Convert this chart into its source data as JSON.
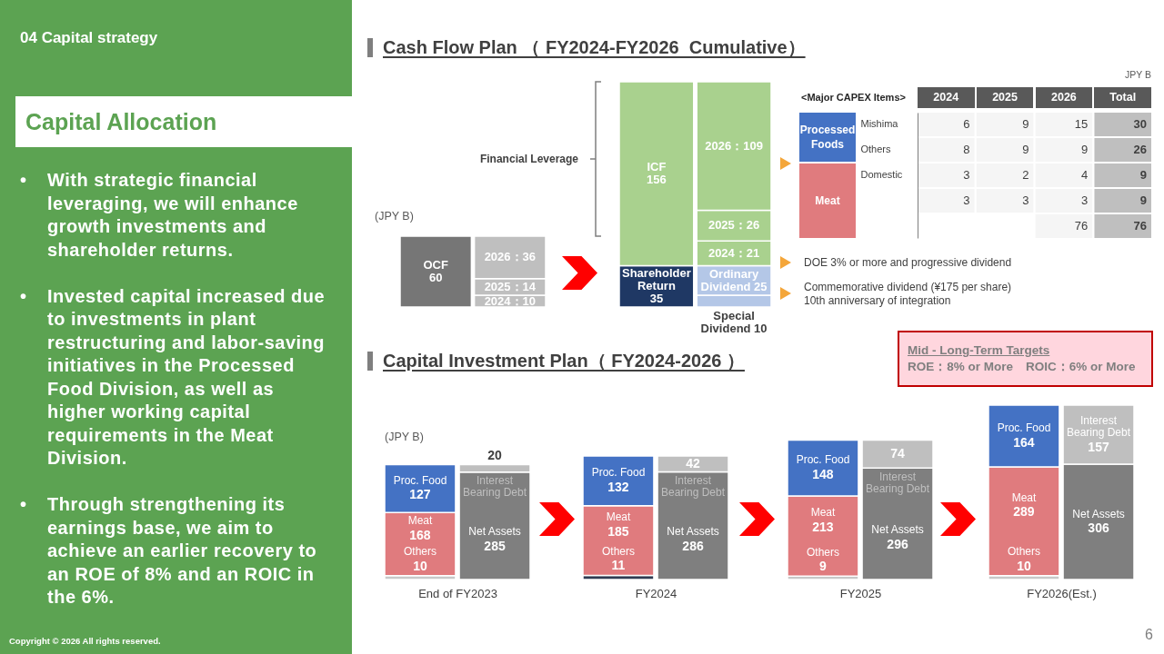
{
  "chart_data": [
    {
      "type": "other",
      "title": "04 Capital strategy",
      "subtitle": "Capital Allocation",
      "annotations": [
        "• With strategic financial leveraging, we will enhance growth investments and shareholder returns.",
        "• Invested capital increased due to investments in plant restructuring and labor-saving initiatives in the Processed Food Division, as well as higher working capital requirements in the Meat Division.",
        "• Through strengthening its earnings base, we aim to achieve an earlier recovery to an ROE of 8% and an ROIC in the 6%.",
        "Copyright © 2026 All rights reserved.",
        "6"
      ]
    },
    {
      "type": "bar",
      "title": "Cash Flow Plan （ FY2024-FY2026  Cumulative）",
      "ylabel": "(JPY B)",
      "stacked": true,
      "categories": [
        null,
        null
      ],
      "series": [
        {
          "color": "#767676",
          "values": [
            60,
            null
          ],
          "value_labels": [
            "OCF\n60",
            null
          ]
        },
        {
          "color": "#bfbfbf",
          "values": [
            null,
            10
          ],
          "value_labels": [
            null,
            "2024：10"
          ]
        },
        {
          "color": "#bfbfbf",
          "values": [
            null,
            14
          ],
          "value_labels": [
            null,
            "2025：14"
          ]
        },
        {
          "color": "#bfbfbf",
          "values": [
            null,
            36
          ],
          "value_labels": [
            null,
            "2026：36"
          ]
        }
      ]
    },
    {
      "type": "bar",
      "stacked": true,
      "categories": [
        null,
        null
      ],
      "series": [
        {
          "color": "#1f3864",
          "values": [
            35,
            null
          ],
          "value_labels": [
            "Shareholder\nReturn\n35",
            null
          ]
        },
        {
          "color": "#a9d18e",
          "values": [
            156,
            null
          ],
          "value_labels": [
            "ICF\n156",
            null
          ]
        },
        {
          "color": "#b4c7e7",
          "values": [
            null,
            10
          ],
          "value_labels": [
            null,
            "Special\nDividend 10"
          ]
        },
        {
          "color": "#b4c7e7",
          "values": [
            null,
            25
          ],
          "value_labels": [
            null,
            "Ordinary\nDividend 25"
          ]
        },
        {
          "color": "#a9d18e",
          "values": [
            null,
            21
          ],
          "value_labels": [
            null,
            "2024：21"
          ]
        },
        {
          "color": "#a9d18e",
          "values": [
            null,
            26
          ],
          "value_labels": [
            null,
            "2025：26"
          ]
        },
        {
          "color": "#a9d18e",
          "values": [
            null,
            109
          ],
          "value_labels": [
            null,
            "2026：109"
          ]
        }
      ],
      "annotations": [
        "Financial Leverage",
        "DOE 3% or more and progressive dividend",
        "Commemorative dividend (¥175 per share)\n10th anniversary of integration"
      ]
    },
    {
      "type": "heatmap",
      "ylabel": "<Major CAPEX Items>",
      "categories": [
        "2024",
        "2025",
        "2026",
        "Total"
      ],
      "y_categories": [
        "Mishima",
        "Others",
        "Domestic",
        null,
        null
      ],
      "y2_categories": [
        "Processed Foods",
        null,
        null,
        "Meat",
        null
      ],
      "colors": [
        "#4472c4",
        null,
        "#e07b7e",
        null,
        null
      ],
      "cells": [
        [
          6,
          9,
          15,
          30
        ],
        [
          8,
          9,
          9,
          26
        ],
        [
          3,
          2,
          4,
          9
        ],
        [
          3,
          3,
          3,
          9
        ],
        [
          null,
          null,
          76,
          76
        ]
      ],
      "data_labels": true,
      "annotations": [
        "JPY B"
      ]
    },
    {
      "type": "bar",
      "title": "Capital Investment Plan（ FY2024-2026 ）",
      "ylabel": "(JPY B)",
      "xlabel": "End of FY2023",
      "stacked": true,
      "data_labels": true,
      "categories": [
        null,
        null
      ],
      "series": [
        {
          "name": "Others",
          "color": "#c8c8c8",
          "values": [
            10,
            null
          ]
        },
        {
          "name": "Meat",
          "color": "#e07b7e",
          "values": [
            168,
            null
          ]
        },
        {
          "name": "Proc. Food",
          "color": "#4472c4",
          "values": [
            127,
            null
          ]
        },
        {
          "name": "Net Assets",
          "color": "#7f7f7f",
          "values": [
            null,
            285
          ]
        },
        {
          "name": "Interest Bearing Debt",
          "color": "#bfbfbf",
          "values": [
            null,
            20
          ]
        }
      ],
      "annotations": [
        "Mid - Long-Term Targets",
        "ROE：8% or More　ROIC：6% or More"
      ]
    },
    {
      "type": "bar",
      "xlabel": "FY2024",
      "stacked": true,
      "data_labels": true,
      "categories": [
        null,
        null
      ],
      "series": [
        {
          "name": "Others",
          "color": "#2f3b52",
          "values": [
            11,
            null
          ]
        },
        {
          "name": "Meat",
          "color": "#e07b7e",
          "values": [
            185,
            null
          ]
        },
        {
          "name": "Proc. Food",
          "color": "#4472c4",
          "values": [
            132,
            null
          ]
        },
        {
          "name": "Net Assets",
          "color": "#7f7f7f",
          "values": [
            null,
            286
          ]
        },
        {
          "name": "Interest Bearing Debt",
          "color": "#bfbfbf",
          "values": [
            null,
            42
          ]
        }
      ]
    },
    {
      "type": "bar",
      "xlabel": "FY2025",
      "stacked": true,
      "data_labels": true,
      "categories": [
        null,
        null
      ],
      "series": [
        {
          "name": "Others",
          "color": "#c8c8c8",
          "values": [
            9,
            null
          ]
        },
        {
          "name": "Meat",
          "color": "#e07b7e",
          "values": [
            213,
            null
          ]
        },
        {
          "name": "Proc. Food",
          "color": "#4472c4",
          "values": [
            148,
            null
          ]
        },
        {
          "name": "Net Assets",
          "color": "#7f7f7f",
          "values": [
            null,
            296
          ]
        },
        {
          "name": "Interest Bearing Debt",
          "color": "#bfbfbf",
          "values": [
            null,
            74
          ]
        }
      ]
    },
    {
      "type": "bar",
      "xlabel": "FY2026(Est.)",
      "stacked": true,
      "data_labels": true,
      "categories": [
        null,
        null
      ],
      "series": [
        {
          "name": "Others",
          "color": "#c8c8c8",
          "values": [
            10,
            null
          ]
        },
        {
          "name": "Meat",
          "color": "#e07b7e",
          "values": [
            289,
            null
          ]
        },
        {
          "name": "Proc. Food",
          "color": "#4472c4",
          "values": [
            164,
            null
          ]
        },
        {
          "name": "Net Assets",
          "color": "#7f7f7f",
          "values": [
            null,
            306
          ]
        },
        {
          "name": "Interest Bearing Debt",
          "color": "#bfbfbf",
          "values": [
            null,
            157
          ]
        }
      ]
    }
  ]
}
